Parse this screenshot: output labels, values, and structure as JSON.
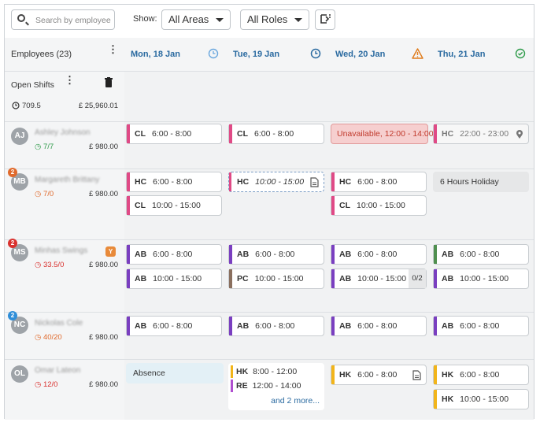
{
  "toolbar": {
    "search_placeholder": "Search by employee",
    "show_label": "Show:",
    "area_select": "All Areas",
    "role_select": "All Roles"
  },
  "sidebar": {
    "employees_title": "Employees (23)",
    "open_shifts_title": "Open Shifts",
    "open_hours": "709.5",
    "open_cost": "£ 25,960.01"
  },
  "days": [
    {
      "label": "Mon, 18 Jan",
      "status_icon": "clock-icon"
    },
    {
      "label": "Tue, 19 Jan",
      "status_icon": "clock-icon"
    },
    {
      "label": "Wed, 20 Jan",
      "status_icon": "warning-icon"
    },
    {
      "label": "Thu, 21 Jan",
      "status_icon": "check-circle-icon"
    }
  ],
  "employees": [
    {
      "initials": "AJ",
      "name": "Ashley Johnson",
      "hours": "7/7",
      "cost": "£ 980.00",
      "hours_color": "#2e9b4a"
    },
    {
      "initials": "MB",
      "name": "Margareth Brittany",
      "hours": "7/0",
      "cost": "£ 980.00",
      "badge": "2",
      "badge_color": "#e06a2c",
      "hours_color": "#e06a2c"
    },
    {
      "initials": "MS",
      "name": "Minhas Swings",
      "hours": "33.5/0",
      "cost": "£ 980.00",
      "badge": "2",
      "badge_color": "#d9322f",
      "hours_color": "#d9322f",
      "tag": "Y"
    },
    {
      "initials": "NC",
      "name": "Nickolas Cole",
      "hours": "40/20",
      "cost": "£ 980.00",
      "badge": "2",
      "badge_color": "#2f8ed8",
      "hours_color": "#e06a2c"
    },
    {
      "initials": "OL",
      "name": "Omar Lateon",
      "hours": "12/0",
      "cost": "£ 980.00",
      "hours_color": "#d9322f"
    }
  ],
  "shifts": {
    "aj_mon": {
      "code": "CL",
      "time": "6:00 - 8:00"
    },
    "aj_tue": {
      "code": "CL",
      "time": "6:00 - 8:00"
    },
    "aj_wed": {
      "text": "Unavailable, 12:00 - 14:00"
    },
    "aj_thu": {
      "code": "HC",
      "time": "22:00 - 23:00"
    },
    "mb_mon1": {
      "code": "HC",
      "time": "6:00 - 8:00"
    },
    "mb_mon2": {
      "code": "CL",
      "time": "10:00 - 15:00"
    },
    "mb_tue": {
      "code": "HC",
      "time": "10:00 - 15:00"
    },
    "mb_wed1": {
      "code": "HC",
      "time": "6:00 - 8:00"
    },
    "mb_wed2": {
      "code": "CL",
      "time": "10:00 - 15:00"
    },
    "mb_thu": {
      "text": "6 Hours Holiday"
    },
    "ms_mon1": {
      "code": "AB",
      "time": "6:00 - 8:00"
    },
    "ms_mon2": {
      "code": "AB",
      "time": "10:00 - 15:00"
    },
    "ms_tue1": {
      "code": "AB",
      "time": "6:00 - 8:00"
    },
    "ms_tue2": {
      "code": "PC",
      "time": "10:00 - 15:00"
    },
    "ms_wed1": {
      "code": "AB",
      "time": "6:00 - 8:00"
    },
    "ms_wed2": {
      "code": "AB",
      "time": "10:00 - 15:00",
      "count": "0/2"
    },
    "ms_thu1": {
      "code": "AB",
      "time": "6:00 - 8:00"
    },
    "ms_thu2": {
      "code": "AB",
      "time": "10:00 - 15:00"
    },
    "nc_mon": {
      "code": "AB",
      "time": "6:00 - 8:00"
    },
    "nc_tue": {
      "code": "AB",
      "time": "6:00 - 8:00"
    },
    "nc_wed": {
      "code": "AB",
      "time": "6:00 - 8:00"
    },
    "nc_thu": {
      "code": "AB",
      "time": "6:00 - 8:00"
    },
    "ol_mon": {
      "text": "Absence"
    },
    "ol_tue1": {
      "code": "HK",
      "time": "8:00 - 12:00"
    },
    "ol_tue2": {
      "code": "RE",
      "time": "12:00 - 14:00"
    },
    "ol_tue_more": "and 2 more...",
    "ol_wed": {
      "code": "HK",
      "time": "6:00 - 8:00"
    },
    "ol_thu1": {
      "code": "HK",
      "time": "6:00 - 8:00"
    },
    "ol_thu2": {
      "code": "HK",
      "time": "10:00 - 15:00"
    }
  },
  "colors": {
    "cl": "#e04a86",
    "hc": "#e04a86",
    "ab": "#7a3fc0",
    "pc": "#8a6f5e",
    "ab_green": "#4f8f4f",
    "hk": "#f2b51a",
    "re": "#b04fd0",
    "header_text": "#2a6aa0"
  }
}
